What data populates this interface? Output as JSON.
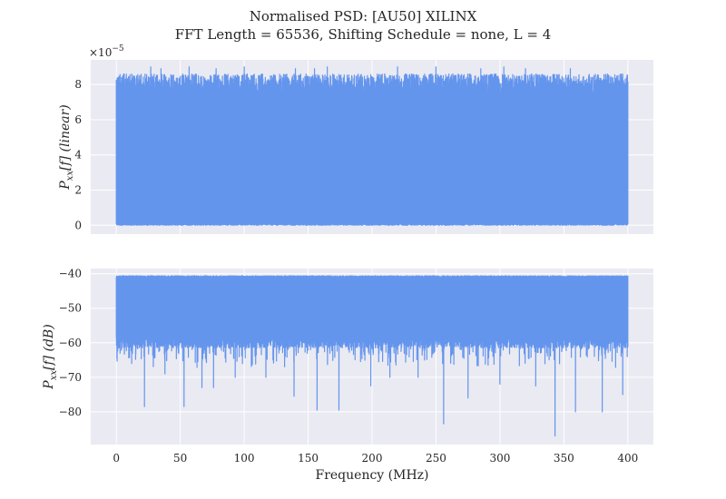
{
  "title_line1": "Normalised PSD: [AU50] XILINX",
  "title_line2": "FFT Length = 65536, Shifting Schedule = none, L = 4",
  "chart_data": [
    {
      "type": "line",
      "panel": "top",
      "ylabel_main": "P",
      "ylabel_sub": "xx",
      "ylabel_rest": "[f] (linear)",
      "offset_base": "×10",
      "offset_exp": "−5",
      "xlim": [
        -20,
        420
      ],
      "ylim": [
        -0.5,
        9.4
      ],
      "yticks": [
        0,
        2,
        4,
        6,
        8
      ],
      "ytick_labels": [
        "0",
        "2",
        "4",
        "6",
        "8"
      ],
      "grid": true,
      "color": "#6495ED",
      "x_range": [
        0,
        400
      ],
      "floor": 0.0,
      "dense_band": [
        0.05,
        8.6
      ],
      "peaks": [
        {
          "x": 0.5,
          "y": 7.9
        },
        {
          "x": 4,
          "y": 8.4
        },
        {
          "x": 12,
          "y": 8.6
        },
        {
          "x": 27,
          "y": 9.0
        },
        {
          "x": 35,
          "y": 8.9
        },
        {
          "x": 57,
          "y": 9.0
        },
        {
          "x": 78,
          "y": 8.9
        },
        {
          "x": 100,
          "y": 9.0
        },
        {
          "x": 140,
          "y": 8.9
        },
        {
          "x": 155,
          "y": 8.9
        },
        {
          "x": 165,
          "y": 9.0
        },
        {
          "x": 220,
          "y": 9.0
        },
        {
          "x": 250,
          "y": 9.0
        },
        {
          "x": 285,
          "y": 8.9
        },
        {
          "x": 303,
          "y": 9.0
        },
        {
          "x": 320,
          "y": 8.9
        },
        {
          "x": 355,
          "y": 8.9
        },
        {
          "x": 395,
          "y": 8.4
        },
        {
          "x": 399.5,
          "y": 6.5
        }
      ]
    },
    {
      "type": "line",
      "panel": "bottom",
      "ylabel_main": "P",
      "ylabel_sub": "xx",
      "ylabel_rest": "[f] (dB)",
      "xlabel": "Frequency (MHz)",
      "xlim": [
        -20,
        420
      ],
      "ylim": [
        -89.5,
        -38.5
      ],
      "xticks": [
        0,
        50,
        100,
        150,
        200,
        250,
        300,
        350,
        400
      ],
      "xtick_labels": [
        "0",
        "50",
        "100",
        "150",
        "200",
        "250",
        "300",
        "350",
        "400"
      ],
      "yticks": [
        -80,
        -70,
        -60,
        -50,
        -40
      ],
      "ytick_labels": [
        "−80",
        "−70",
        "−60",
        "−50",
        "−40"
      ],
      "grid": true,
      "color": "#6495ED",
      "x_range": [
        0,
        400
      ],
      "ceiling": -40.6,
      "dense_band": [
        -41.0,
        -58.0
      ],
      "dips": [
        {
          "x": 0.5,
          "y": -64.5
        },
        {
          "x": 3,
          "y": -63.0
        },
        {
          "x": 12,
          "y": -66.0
        },
        {
          "x": 22,
          "y": -78.5
        },
        {
          "x": 38,
          "y": -69.0
        },
        {
          "x": 53,
          "y": -78.5
        },
        {
          "x": 67,
          "y": -73.0
        },
        {
          "x": 76,
          "y": -73.0
        },
        {
          "x": 93,
          "y": -70.0
        },
        {
          "x": 117,
          "y": -70.0
        },
        {
          "x": 139,
          "y": -75.5
        },
        {
          "x": 157,
          "y": -79.5
        },
        {
          "x": 174,
          "y": -79.5
        },
        {
          "x": 199,
          "y": -72.5
        },
        {
          "x": 214,
          "y": -70.0
        },
        {
          "x": 236,
          "y": -70.0
        },
        {
          "x": 256,
          "y": -83.5
        },
        {
          "x": 275,
          "y": -76.0
        },
        {
          "x": 300,
          "y": -72.0
        },
        {
          "x": 328,
          "y": -72.5
        },
        {
          "x": 343,
          "y": -87.0
        },
        {
          "x": 359,
          "y": -80.0
        },
        {
          "x": 380,
          "y": -80.0
        },
        {
          "x": 396,
          "y": -75.0
        },
        {
          "x": 399.5,
          "y": -64.0
        }
      ]
    }
  ]
}
